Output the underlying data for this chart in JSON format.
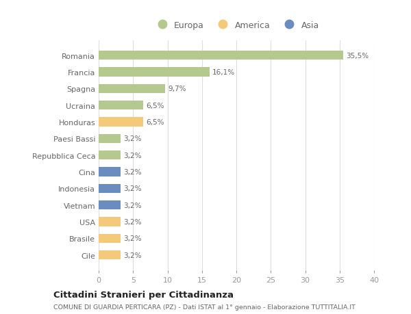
{
  "categories": [
    "Romania",
    "Francia",
    "Spagna",
    "Ucraina",
    "Honduras",
    "Paesi Bassi",
    "Repubblica Ceca",
    "Cina",
    "Indonesia",
    "Vietnam",
    "USA",
    "Brasile",
    "Cile"
  ],
  "values": [
    35.5,
    16.1,
    9.7,
    6.5,
    6.5,
    3.2,
    3.2,
    3.2,
    3.2,
    3.2,
    3.2,
    3.2,
    3.2
  ],
  "labels": [
    "35,5%",
    "16,1%",
    "9,7%",
    "6,5%",
    "6,5%",
    "3,2%",
    "3,2%",
    "3,2%",
    "3,2%",
    "3,2%",
    "3,2%",
    "3,2%",
    "3,2%"
  ],
  "continent": [
    "Europa",
    "Europa",
    "Europa",
    "Europa",
    "America",
    "Europa",
    "Europa",
    "Asia",
    "Asia",
    "Asia",
    "America",
    "America",
    "America"
  ],
  "colors": {
    "Europa": "#b5c98e",
    "America": "#f5c97a",
    "Asia": "#6b8cbf"
  },
  "legend_order": [
    "Europa",
    "America",
    "Asia"
  ],
  "xlim": [
    0,
    40
  ],
  "xticks": [
    0,
    5,
    10,
    15,
    20,
    25,
    30,
    35,
    40
  ],
  "title1": "Cittadini Stranieri per Cittadinanza",
  "title2": "COMUNE DI GUARDIA PERTICARA (PZ) - Dati ISTAT al 1° gennaio - Elaborazione TUTTITALIA.IT",
  "background_color": "#ffffff",
  "grid_color": "#dddddd",
  "bar_height": 0.55
}
